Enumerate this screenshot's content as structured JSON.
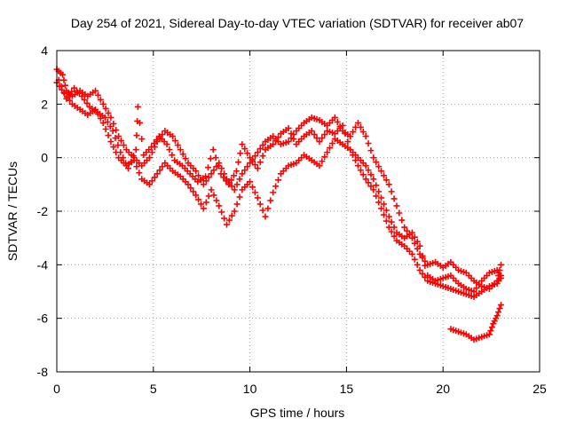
{
  "chart_data": {
    "type": "scatter",
    "title": "Day 254 of 2021, Sidereal Day-to-day VTEC variation (SDTVAR) for receiver ab07",
    "xlabel": "GPS time / hours",
    "ylabel": "SDTVAR / TECUs",
    "xlim": [
      0,
      25
    ],
    "ylim": [
      -8,
      4
    ],
    "x_ticks": [
      0,
      5,
      10,
      15,
      20,
      25
    ],
    "y_ticks": [
      -8,
      -6,
      -4,
      -2,
      0,
      2,
      4
    ],
    "x_tick_labels": [
      "0",
      "5",
      "10",
      "15",
      "20",
      "25"
    ],
    "y_tick_labels": [
      "-8",
      "-6",
      "-4",
      "-2",
      "0",
      "2",
      "4"
    ],
    "grid": true,
    "marker": "+",
    "series": [
      {
        "name": "track-a",
        "color": "#ff0000",
        "points": [
          [
            0.0,
            3.3
          ],
          [
            0.3,
            3.1
          ],
          [
            0.5,
            2.5
          ],
          [
            0.8,
            2.3
          ],
          [
            1.2,
            2.5
          ],
          [
            1.6,
            2.3
          ],
          [
            2.0,
            2.5
          ],
          [
            2.4,
            2.0
          ],
          [
            2.8,
            1.5
          ],
          [
            3.2,
            0.8
          ],
          [
            3.6,
            0.3
          ],
          [
            4.0,
            0.0
          ],
          [
            4.4,
            -0.3
          ],
          [
            4.8,
            0.0
          ],
          [
            5.2,
            0.6
          ],
          [
            5.6,
            1.0
          ],
          [
            6.0,
            0.8
          ],
          [
            6.4,
            0.3
          ],
          [
            6.8,
            -0.2
          ],
          [
            7.2,
            -0.5
          ],
          [
            7.6,
            -1.0
          ],
          [
            8.0,
            -0.6
          ],
          [
            8.4,
            -0.2
          ],
          [
            8.8,
            -0.8
          ],
          [
            9.2,
            -1.2
          ],
          [
            9.6,
            -0.6
          ],
          [
            10.0,
            -0.2
          ],
          [
            10.4,
            0.2
          ],
          [
            10.8,
            0.6
          ],
          [
            11.2,
            0.8
          ],
          [
            11.6,
            0.5
          ],
          [
            12.0,
            0.6
          ],
          [
            12.4,
            1.0
          ],
          [
            12.8,
            1.3
          ],
          [
            13.2,
            1.5
          ],
          [
            13.6,
            1.4
          ],
          [
            14.0,
            1.2
          ],
          [
            14.4,
            1.5
          ],
          [
            14.8,
            1.0
          ],
          [
            15.2,
            0.8
          ],
          [
            15.6,
            1.3
          ],
          [
            16.0,
            0.8
          ],
          [
            16.4,
            0.0
          ],
          [
            16.8,
            -0.5
          ],
          [
            17.2,
            -1.0
          ],
          [
            17.6,
            -1.8
          ],
          [
            18.0,
            -2.6
          ],
          [
            18.4,
            -3.0
          ],
          [
            18.8,
            -3.6
          ],
          [
            19.2,
            -4.0
          ],
          [
            19.6,
            -3.9
          ],
          [
            20.0,
            -4.1
          ],
          [
            20.4,
            -3.9
          ],
          [
            20.8,
            -4.2
          ],
          [
            21.2,
            -4.3
          ],
          [
            21.6,
            -4.6
          ],
          [
            22.0,
            -4.8
          ],
          [
            22.4,
            -4.9
          ],
          [
            22.8,
            -4.6
          ],
          [
            23.0,
            -4.0
          ]
        ]
      },
      {
        "name": "track-b",
        "color": "#ff0000",
        "points": [
          [
            0.0,
            2.8
          ],
          [
            0.4,
            2.4
          ],
          [
            0.8,
            2.0
          ],
          [
            1.2,
            1.8
          ],
          [
            1.6,
            1.6
          ],
          [
            2.0,
            1.8
          ],
          [
            2.4,
            1.3
          ],
          [
            2.8,
            0.6
          ],
          [
            3.2,
            0.0
          ],
          [
            3.6,
            -0.3
          ],
          [
            4.0,
            -0.1
          ],
          [
            4.4,
            -0.8
          ],
          [
            4.8,
            -1.0
          ],
          [
            5.2,
            -0.6
          ],
          [
            5.6,
            -0.2
          ],
          [
            6.0,
            -0.5
          ],
          [
            6.4,
            -0.7
          ],
          [
            6.8,
            -1.0
          ],
          [
            7.2,
            -1.4
          ],
          [
            7.6,
            -1.9
          ],
          [
            8.0,
            -1.2
          ],
          [
            8.4,
            -1.8
          ],
          [
            8.8,
            -2.5
          ],
          [
            9.2,
            -2.0
          ],
          [
            9.6,
            -1.2
          ],
          [
            10.0,
            -0.9
          ],
          [
            10.4,
            -1.5
          ],
          [
            10.8,
            -2.2
          ],
          [
            11.2,
            -1.3
          ],
          [
            11.6,
            -0.6
          ],
          [
            12.0,
            -0.3
          ],
          [
            12.4,
            -0.2
          ],
          [
            12.8,
            0.1
          ],
          [
            13.2,
            -0.1
          ],
          [
            13.6,
            -0.3
          ],
          [
            14.0,
            0.2
          ],
          [
            14.4,
            0.7
          ],
          [
            14.8,
            0.5
          ],
          [
            15.2,
            0.3
          ],
          [
            15.6,
            -0.3
          ],
          [
            16.0,
            -0.8
          ],
          [
            16.4,
            -1.2
          ],
          [
            16.8,
            -1.9
          ],
          [
            17.2,
            -2.6
          ],
          [
            17.6,
            -3.1
          ],
          [
            18.0,
            -3.3
          ],
          [
            18.4,
            -3.6
          ],
          [
            18.8,
            -4.2
          ],
          [
            19.2,
            -4.6
          ],
          [
            19.6,
            -4.7
          ],
          [
            20.0,
            -4.8
          ],
          [
            20.4,
            -4.9
          ],
          [
            20.8,
            -5.0
          ],
          [
            21.2,
            -5.1
          ],
          [
            21.6,
            -5.2
          ],
          [
            22.0,
            -5.0
          ],
          [
            22.4,
            -4.8
          ],
          [
            22.8,
            -4.7
          ],
          [
            23.0,
            -4.4
          ]
        ]
      },
      {
        "name": "track-c",
        "color": "#ff0000",
        "points": [
          [
            0.1,
            2.9
          ],
          [
            0.5,
            2.2
          ],
          [
            0.9,
            2.6
          ],
          [
            1.3,
            2.3
          ],
          [
            1.7,
            1.9
          ],
          [
            2.1,
            1.7
          ],
          [
            2.5,
            1.5
          ],
          [
            2.9,
            1.0
          ],
          [
            3.3,
            0.2
          ],
          [
            3.7,
            -0.4
          ],
          [
            4.1,
            0.3
          ],
          [
            4.2,
            1.9
          ],
          [
            4.5,
            0.1
          ],
          [
            4.9,
            0.4
          ],
          [
            5.3,
            0.8
          ],
          [
            5.7,
            0.5
          ],
          [
            6.1,
            -0.1
          ],
          [
            6.5,
            -0.3
          ],
          [
            6.9,
            -0.6
          ],
          [
            7.3,
            -0.9
          ],
          [
            7.7,
            -0.7
          ],
          [
            8.1,
            0.3
          ],
          [
            8.5,
            -0.6
          ],
          [
            8.9,
            -1.0
          ],
          [
            9.3,
            -0.5
          ],
          [
            9.6,
            0.5
          ],
          [
            10.0,
            0.0
          ],
          [
            10.4,
            -0.4
          ],
          [
            10.8,
            0.3
          ],
          [
            11.2,
            0.5
          ],
          [
            11.6,
            0.9
          ],
          [
            12.0,
            1.1
          ],
          [
            12.4,
            0.5
          ],
          [
            12.8,
            0.8
          ],
          [
            13.2,
            1.0
          ],
          [
            13.6,
            0.6
          ],
          [
            14.0,
            1.0
          ],
          [
            14.4,
            0.9
          ],
          [
            14.8,
            1.2
          ],
          [
            15.2,
            0.3
          ],
          [
            15.6,
            0.0
          ],
          [
            16.0,
            -0.3
          ],
          [
            16.4,
            -0.8
          ],
          [
            16.8,
            -1.5
          ],
          [
            17.2,
            -2.2
          ],
          [
            17.6,
            -2.8
          ],
          [
            18.0,
            -3.0
          ],
          [
            18.4,
            -2.8
          ],
          [
            18.8,
            -3.3
          ],
          [
            19.2,
            -4.4
          ],
          [
            19.6,
            -4.6
          ],
          [
            20.0,
            -4.5
          ],
          [
            20.4,
            -4.4
          ],
          [
            20.8,
            -4.7
          ],
          [
            21.2,
            -4.9
          ],
          [
            21.6,
            -5.0
          ],
          [
            22.0,
            -4.6
          ],
          [
            22.4,
            -4.3
          ],
          [
            22.8,
            -4.2
          ],
          [
            23.0,
            -4.5
          ]
        ]
      },
      {
        "name": "track-d",
        "color": "#ff0000",
        "points": [
          [
            20.4,
            -6.4
          ],
          [
            20.8,
            -6.5
          ],
          [
            21.2,
            -6.6
          ],
          [
            21.6,
            -6.8
          ],
          [
            22.0,
            -6.7
          ],
          [
            22.4,
            -6.6
          ],
          [
            22.6,
            -6.2
          ],
          [
            22.8,
            -5.9
          ],
          [
            23.0,
            -5.5
          ]
        ]
      }
    ]
  }
}
